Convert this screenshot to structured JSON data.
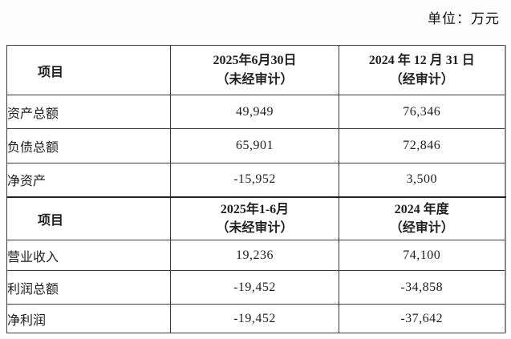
{
  "page": {
    "unit_label": "单位：万元"
  },
  "table": {
    "sections": [
      {
        "header": {
          "item": "项目",
          "col1_line1": "2025年6月30日",
          "col1_line2": "（未经审计）",
          "col2_line1": "2024 年 12 月 31 日",
          "col2_line2": "（经审计）"
        },
        "rows": [
          {
            "label": "资产总额",
            "col1": "49,949",
            "col2": "76,346"
          },
          {
            "label": "负债总额",
            "col1": "65,901",
            "col2": "72,846"
          },
          {
            "label": "净资产",
            "col1": "-15,952",
            "col2": "3,500"
          }
        ]
      },
      {
        "header": {
          "item": "项目",
          "col1_line1": "2025年1-6月",
          "col1_line2": "（未经审计）",
          "col2_line1": "2024 年度",
          "col2_line2": "（经审计）"
        },
        "rows": [
          {
            "label": "营业收入",
            "col1": "19,236",
            "col2": "74,100"
          },
          {
            "label": "利润总额",
            "col1": "-19,452",
            "col2": "-34,858"
          },
          {
            "label": "净利润",
            "col1": "-19,452",
            "col2": "-37,642"
          }
        ]
      }
    ]
  }
}
